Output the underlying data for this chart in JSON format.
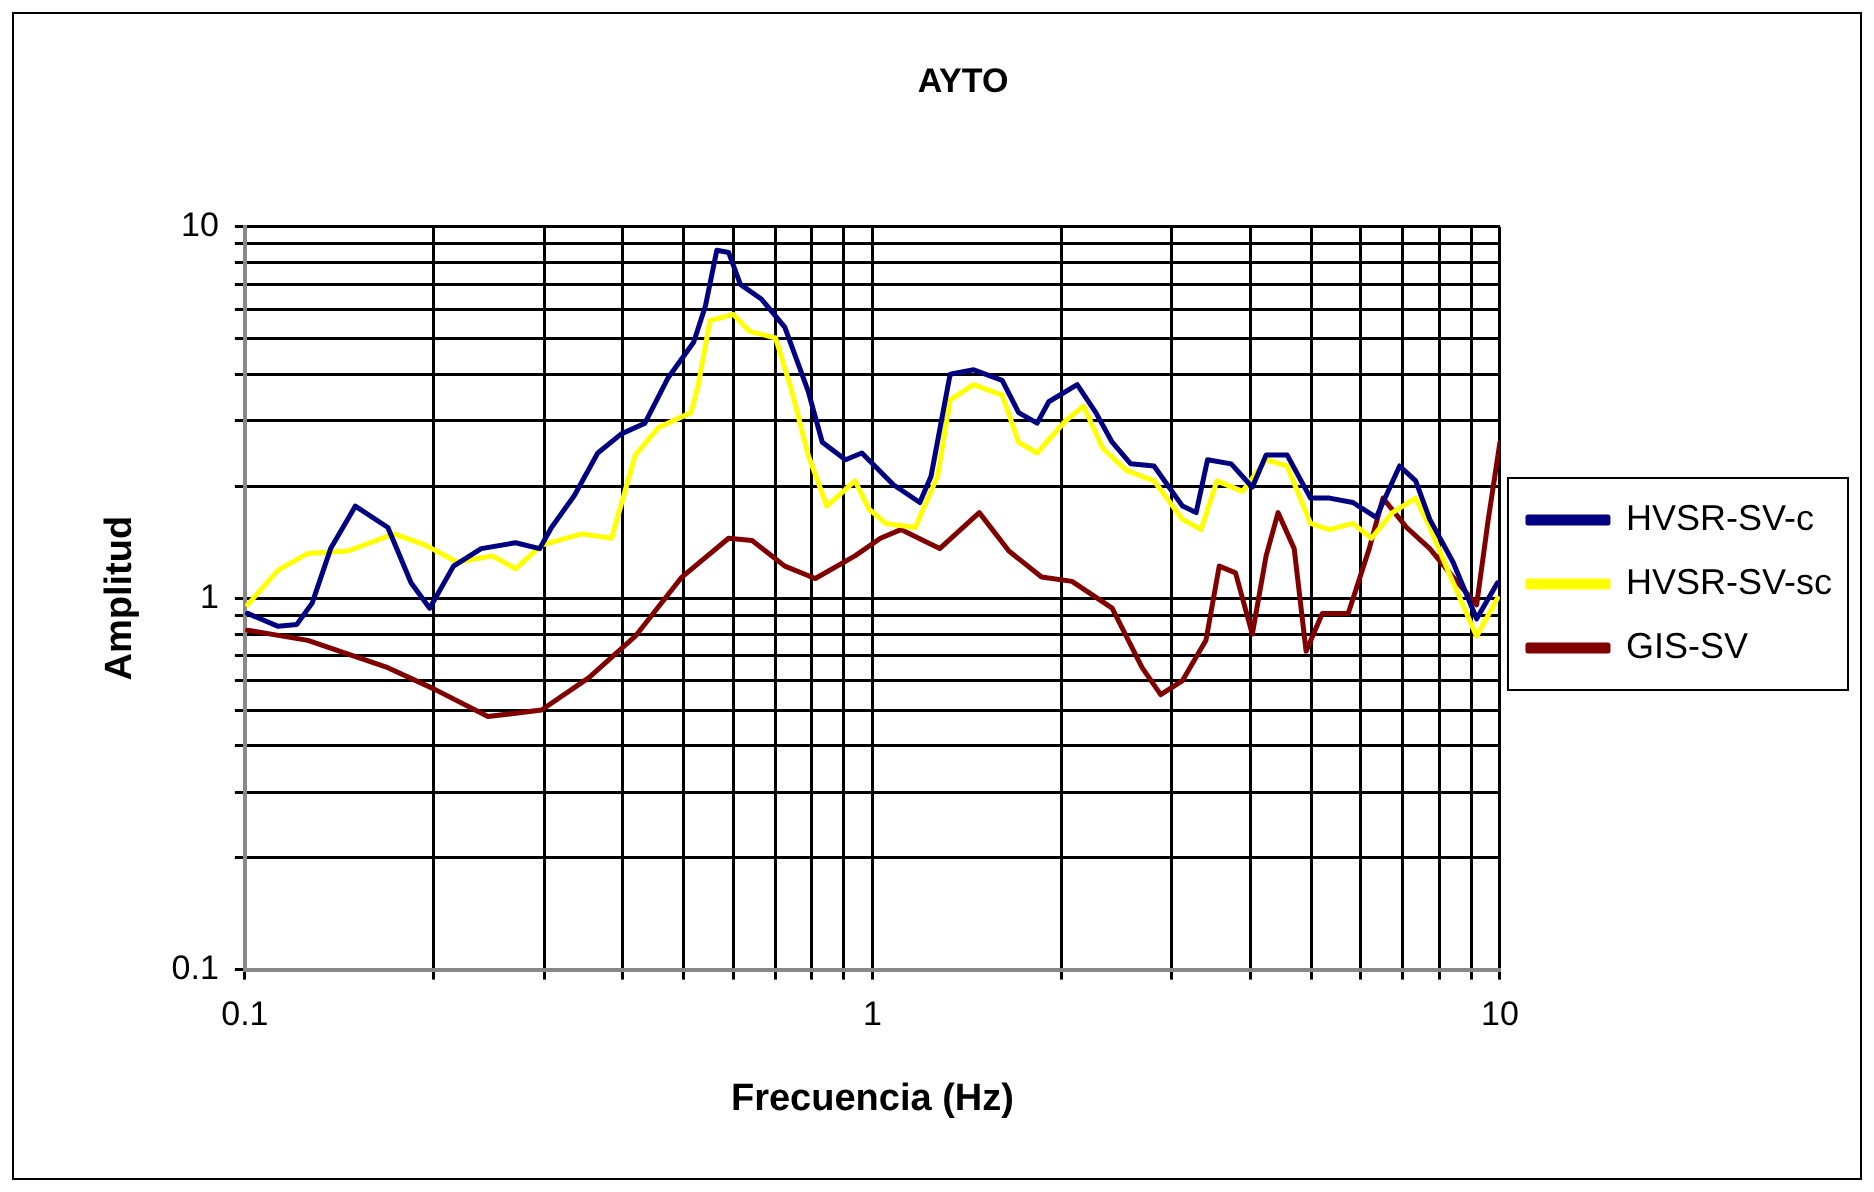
{
  "chart_data": {
    "type": "line",
    "title": "AYTO",
    "xlabel": "Frecuencia (Hz)",
    "ylabel": "Amplitud",
    "log": "xy",
    "grid": true,
    "legend": "right",
    "marker": "none",
    "line_style": "solid",
    "xlim": [
      0.1,
      10
    ],
    "ylim": [
      0.1,
      10
    ],
    "xticks": [
      0.1,
      {
        "value": 0.2,
        "label": null
      },
      {
        "value": 0.3,
        "label": null
      },
      {
        "value": 0.4,
        "label": null
      },
      {
        "value": 0.5,
        "label": null
      },
      {
        "value": 0.6,
        "label": null
      },
      {
        "value": 0.7,
        "label": null
      },
      {
        "value": 0.8,
        "label": null
      },
      {
        "value": 0.9,
        "label": null
      },
      1,
      {
        "value": 2,
        "label": null
      },
      {
        "value": 3,
        "label": null
      },
      {
        "value": 4,
        "label": null
      },
      {
        "value": 5,
        "label": null
      },
      {
        "value": 6,
        "label": null
      },
      {
        "value": 7,
        "label": null
      },
      {
        "value": 8,
        "label": null
      },
      {
        "value": 9,
        "label": null
      },
      10
    ],
    "yticks": [
      0.1,
      {
        "value": 0.2,
        "label": null
      },
      {
        "value": 0.3,
        "label": null
      },
      {
        "value": 0.4,
        "label": null
      },
      {
        "value": 0.5,
        "label": null
      },
      {
        "value": 0.6,
        "label": null
      },
      {
        "value": 0.7,
        "label": null
      },
      {
        "value": 0.8,
        "label": null
      },
      {
        "value": 0.9,
        "label": null
      },
      1,
      {
        "value": 2,
        "label": null
      },
      {
        "value": 3,
        "label": null
      },
      {
        "value": 4,
        "label": null
      },
      {
        "value": 5,
        "label": null
      },
      {
        "value": 6,
        "label": null
      },
      {
        "value": 7,
        "label": null
      },
      {
        "value": 8,
        "label": null
      },
      {
        "value": 9,
        "label": null
      },
      10
    ],
    "series": [
      {
        "name": "HVSR-SV-c",
        "color": "#000080",
        "x": [
          0.101,
          0.113,
          0.121,
          0.128,
          0.137,
          0.15,
          0.169,
          0.184,
          0.197,
          0.215,
          0.238,
          0.27,
          0.295,
          0.308,
          0.335,
          0.365,
          0.398,
          0.434,
          0.472,
          0.519,
          0.542,
          0.565,
          0.59,
          0.616,
          0.666,
          0.725,
          0.79,
          0.832,
          0.906,
          0.962,
          1.08,
          1.19,
          1.24,
          1.33,
          1.45,
          1.61,
          1.71,
          1.83,
          1.91,
          2.12,
          2.27,
          2.41,
          2.58,
          2.81,
          3.12,
          3.28,
          3.42,
          3.73,
          4.03,
          4.24,
          4.58,
          4.99,
          5.35,
          5.83,
          6.35,
          6.92,
          7.34,
          7.73,
          8.42,
          9.18,
          9.91
        ],
        "values": [
          0.91,
          0.84,
          0.85,
          0.97,
          1.36,
          1.77,
          1.55,
          1.1,
          0.94,
          1.22,
          1.36,
          1.41,
          1.36,
          1.55,
          1.89,
          2.46,
          2.77,
          2.96,
          3.91,
          4.89,
          6.13,
          8.65,
          8.53,
          7.0,
          6.38,
          5.37,
          3.61,
          2.63,
          2.36,
          2.46,
          2.02,
          1.81,
          2.13,
          4.01,
          4.12,
          3.86,
          3.16,
          2.96,
          3.38,
          3.76,
          3.16,
          2.63,
          2.3,
          2.27,
          1.77,
          1.7,
          2.36,
          2.3,
          1.99,
          2.43,
          2.43,
          1.86,
          1.86,
          1.81,
          1.65,
          2.27,
          2.07,
          1.63,
          1.25,
          0.88,
          1.1
        ]
      },
      {
        "name": "HVSR-SV-sc",
        "color": "#ffff00",
        "x": [
          0.101,
          0.113,
          0.126,
          0.146,
          0.173,
          0.194,
          0.218,
          0.248,
          0.27,
          0.297,
          0.344,
          0.384,
          0.419,
          0.456,
          0.514,
          0.528,
          0.551,
          0.6,
          0.637,
          0.701,
          0.744,
          0.79,
          0.846,
          0.938,
          0.987,
          1.05,
          1.17,
          1.27,
          1.33,
          1.45,
          1.61,
          1.71,
          1.83,
          2.03,
          2.17,
          2.33,
          2.54,
          2.81,
          3.12,
          3.34,
          3.54,
          3.89,
          4.24,
          4.58,
          4.99,
          5.35,
          5.83,
          6.24,
          6.74,
          7.34,
          7.73,
          8.42,
          9.18,
          9.91
        ],
        "values": [
          0.96,
          1.19,
          1.32,
          1.34,
          1.49,
          1.39,
          1.25,
          1.3,
          1.2,
          1.39,
          1.49,
          1.45,
          2.43,
          2.88,
          3.16,
          3.76,
          5.59,
          5.81,
          5.23,
          5.02,
          3.61,
          2.43,
          1.77,
          2.07,
          1.74,
          1.59,
          1.55,
          2.13,
          3.42,
          3.76,
          3.52,
          2.63,
          2.46,
          3.0,
          3.29,
          2.53,
          2.21,
          2.07,
          1.63,
          1.53,
          2.07,
          1.94,
          2.36,
          2.27,
          1.59,
          1.53,
          1.59,
          1.45,
          1.7,
          1.86,
          1.55,
          1.1,
          0.79,
          1.0
        ]
      },
      {
        "name": "GIS-SV",
        "color": "#800000",
        "x": [
          0.101,
          0.126,
          0.169,
          0.2,
          0.244,
          0.297,
          0.353,
          0.419,
          0.497,
          0.59,
          0.643,
          0.725,
          0.811,
          0.938,
          1.03,
          1.11,
          1.28,
          1.48,
          1.65,
          1.86,
          2.08,
          2.41,
          2.69,
          2.88,
          3.12,
          3.4,
          3.57,
          3.79,
          4.03,
          4.24,
          4.43,
          4.7,
          4.91,
          5.21,
          5.73,
          6.19,
          6.51,
          7.1,
          7.73,
          8.42,
          9.18,
          9.58,
          10
        ],
        "values": [
          0.82,
          0.77,
          0.65,
          0.57,
          0.48,
          0.5,
          0.61,
          0.79,
          1.14,
          1.45,
          1.43,
          1.22,
          1.13,
          1.3,
          1.45,
          1.53,
          1.36,
          1.7,
          1.34,
          1.14,
          1.11,
          0.94,
          0.65,
          0.55,
          0.6,
          0.77,
          1.22,
          1.17,
          0.8,
          1.3,
          1.7,
          1.36,
          0.72,
          0.91,
          0.91,
          1.36,
          1.86,
          1.55,
          1.36,
          1.14,
          0.96,
          1.63,
          2.63
        ]
      }
    ]
  }
}
